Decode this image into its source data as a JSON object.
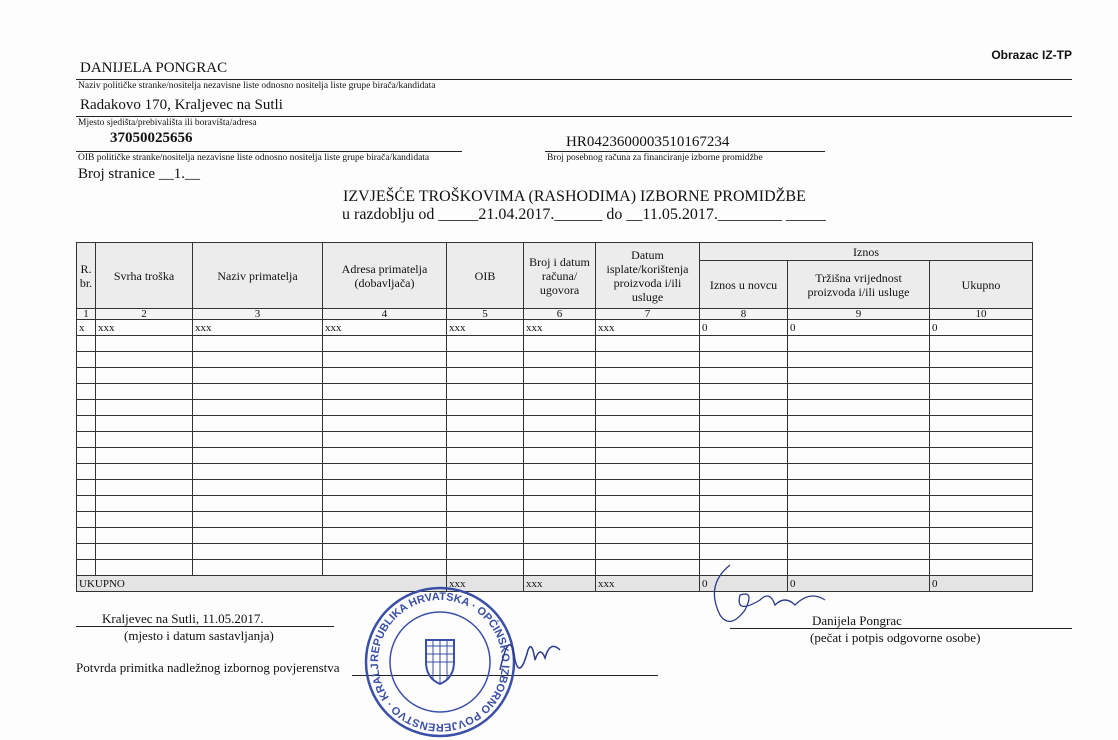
{
  "form_code": "Obrazac IZ-TP",
  "party_name": "DANIJELA PONGRAC",
  "party_name_label": "Naziv političke stranke/nositelja nezavisne liste odnosno nositelja liste grupe birača/kandidata",
  "address": "Radakovo 170, Kraljevec na Sutli",
  "address_label": "Mjesto sjedišta/prebivališta ili boravišta/adresa",
  "oib": "37050025656",
  "oib_label": "OIB političke stranke/nositelja nezavisne liste odnosno nositelja liste grupe birača/kandidata",
  "account": "HR0423600003510167234",
  "account_label": "Broj posebnog računa za financiranje izborne promidžbe",
  "page_label": "Broj stranice __1.__",
  "title": "IZVJEŠĆE TROŠKOVIMA (RASHODIMA) IZBORNE PROMIDŽBE",
  "period": "u razdoblju od _____21.04.2017.______ do __11.05.2017.________ _____",
  "table": {
    "headers": [
      "R. br.",
      "Svrha troška",
      "Naziv primatelja",
      "Adresa primatelja (dobavljača)",
      "OIB",
      "Broj i datum računa/ ugovora",
      "Datum isplate/korištenja proizvoda i/ili usluge"
    ],
    "group_header": "Iznos",
    "sub_headers": [
      "Iznos u novcu",
      "Tržišna vrijednost proizvoda i/ili usluge",
      "Ukupno"
    ],
    "column_numbers": [
      "1",
      "2",
      "3",
      "4",
      "5",
      "6",
      "7",
      "8",
      "9",
      "10"
    ],
    "rows": [
      [
        "x",
        "xxx",
        "xxx",
        "xxx",
        "xxx",
        "xxx",
        "xxx",
        "0",
        "0",
        "0"
      ]
    ],
    "total_label": "UKUPNO",
    "totals": [
      "xxx",
      "xxx",
      "xxx",
      "0",
      "0",
      "0"
    ]
  },
  "place_date": "Kraljevec na Sutli, 11.05.2017.",
  "place_date_label": "(mjesto i datum sastavljanja)",
  "signer": "Danijela Pongrac",
  "signer_label": "(pečat i potpis odgovorne osobe)",
  "receipt_label": "Potvrda primitka nadležnog izbornog povjerenstva",
  "stamp_text": "REPUBLIKA HRVATSKA DRŽAVNO IZBORNO POVJERENSTVO OPĆINSKO IZBORNO POVJERENSTVO KRALJEVEC NA SUTLI",
  "colors": {
    "stamp": "#3a4fa8",
    "ink": "#2b3a8a"
  }
}
